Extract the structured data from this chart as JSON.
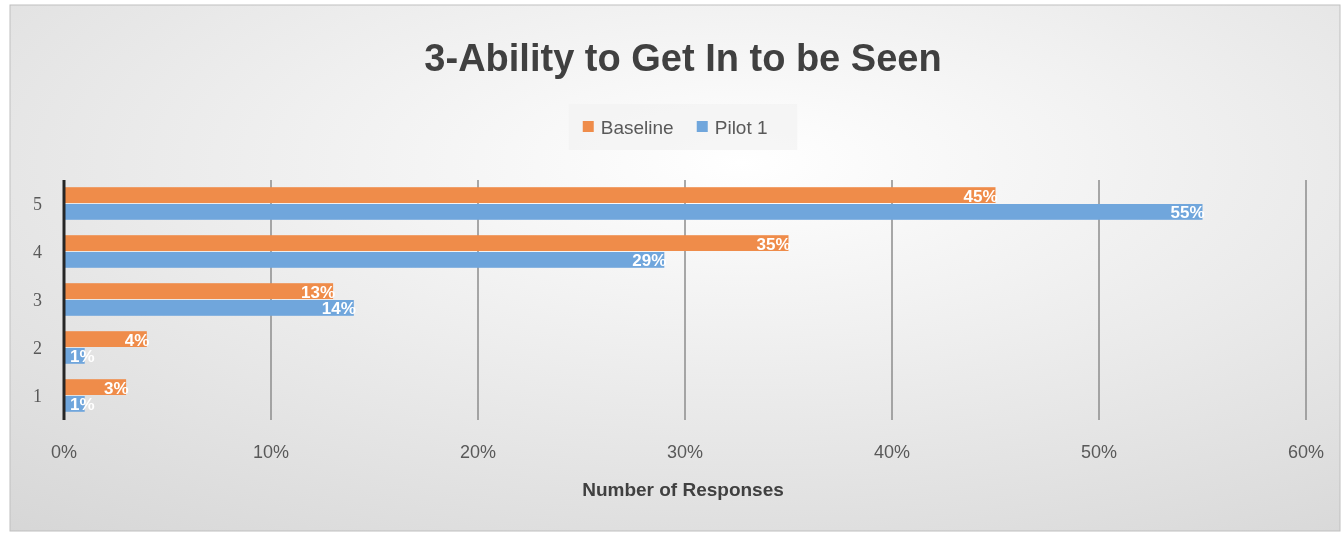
{
  "chart_data": {
    "type": "bar",
    "orientation": "horizontal",
    "title": "3-Ability to Get In to be Seen",
    "xlabel": "Number of Responses",
    "categories": [
      "5",
      "4",
      "3",
      "2",
      "1"
    ],
    "series": [
      {
        "name": "Baseline",
        "color": "#ef8c4a",
        "values": [
          45,
          35,
          13,
          4,
          3
        ],
        "value_labels": [
          "45%",
          "35%",
          "13%",
          "4%",
          "3%"
        ]
      },
      {
        "name": "Pilot 1",
        "color": "#70a6dc",
        "values": [
          55,
          29,
          14,
          1,
          1
        ],
        "value_labels": [
          "55%",
          "29%",
          "14%",
          "1%",
          "1%"
        ]
      }
    ],
    "xlim": [
      0,
      60
    ],
    "xticks": [
      {
        "value": 0,
        "label": "0%"
      },
      {
        "value": 10,
        "label": "10%"
      },
      {
        "value": 20,
        "label": "20%"
      },
      {
        "value": 30,
        "label": "30%"
      },
      {
        "value": 40,
        "label": "40%"
      },
      {
        "value": 50,
        "label": "50%"
      },
      {
        "value": 60,
        "label": "60%"
      }
    ],
    "grid": "x",
    "legend": "top"
  }
}
